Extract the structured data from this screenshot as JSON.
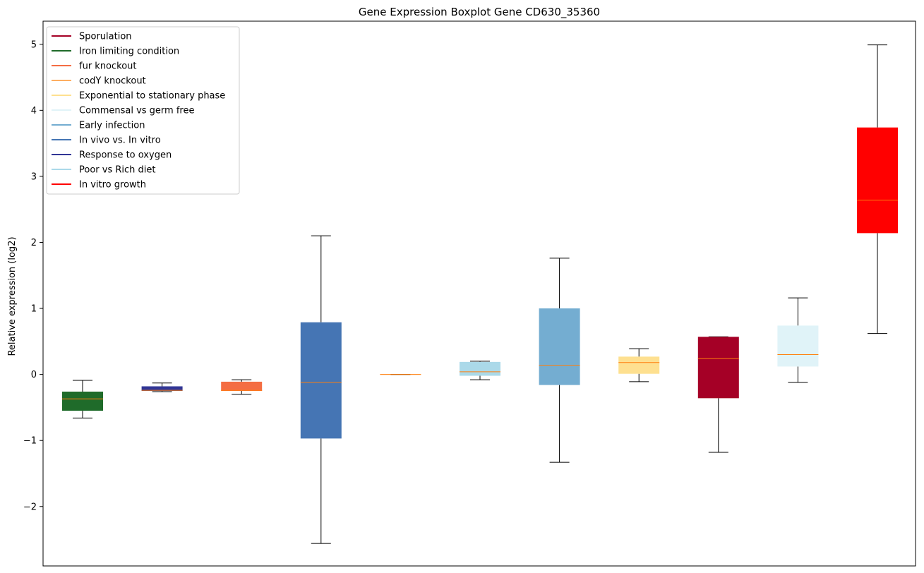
{
  "chart_data": {
    "type": "boxplot",
    "title": "Gene Expression Boxplot Gene CD630_35360",
    "xlabel": "",
    "ylabel": "Relative expression (log2)",
    "ylim": [
      -2.9,
      5.35
    ],
    "yticks": [
      -2,
      -1,
      0,
      1,
      2,
      3,
      4,
      5
    ],
    "ytick_labels": [
      "−2",
      "−1",
      "0",
      "1",
      "2",
      "3",
      "4",
      "5"
    ],
    "grid": false,
    "legend_position": "upper-left",
    "legend": [
      {
        "label": "Sporulation",
        "color": "#a50026"
      },
      {
        "label": "Iron limiting condition",
        "color": "#1f6b2a"
      },
      {
        "label": "fur knockout",
        "color": "#f46d43"
      },
      {
        "label": "codY knockout",
        "color": "#fdae61"
      },
      {
        "label": "Exponential to stationary phase",
        "color": "#fee090"
      },
      {
        "label": "Commensal vs germ free",
        "color": "#e0f3f8"
      },
      {
        "label": "Early infection",
        "color": "#74add1"
      },
      {
        "label": "In vivo vs. In vitro",
        "color": "#4575b4"
      },
      {
        "label": "Response to oxygen",
        "color": "#313695"
      },
      {
        "label": "Poor vs Rich diet",
        "color": "#abd9e9"
      },
      {
        "label": "In vitro growth",
        "color": "#ff0000"
      }
    ],
    "median_color": "#ff7f0e",
    "boxes": [
      {
        "color": "#1f6b2a",
        "whisker_low": -0.66,
        "q1": -0.55,
        "median": -0.37,
        "q3": -0.26,
        "whisker_high": -0.09
      },
      {
        "color": "#313695",
        "whisker_low": -0.26,
        "q1": -0.25,
        "median": -0.24,
        "q3": -0.18,
        "whisker_high": -0.13
      },
      {
        "color": "#f46d43",
        "whisker_low": -0.3,
        "q1": -0.25,
        "median": -0.24,
        "q3": -0.11,
        "whisker_high": -0.08
      },
      {
        "color": "#4575b4",
        "whisker_low": -2.56,
        "q1": -0.97,
        "median": -0.12,
        "q3": 0.79,
        "whisker_high": 2.1
      },
      {
        "color": "#fdae61",
        "whisker_low": 0.0,
        "q1": 0.0,
        "median": 0.0,
        "q3": 0.0,
        "whisker_high": 0.0
      },
      {
        "color": "#abd9e9",
        "whisker_low": -0.08,
        "q1": -0.02,
        "median": 0.04,
        "q3": 0.19,
        "whisker_high": 0.2
      },
      {
        "color": "#74add1",
        "whisker_low": -1.33,
        "q1": -0.16,
        "median": 0.14,
        "q3": 1.0,
        "whisker_high": 1.76
      },
      {
        "color": "#fee090",
        "whisker_low": -0.11,
        "q1": 0.01,
        "median": 0.18,
        "q3": 0.27,
        "whisker_high": 0.39
      },
      {
        "color": "#a50026",
        "whisker_low": -1.18,
        "q1": -0.36,
        "median": 0.24,
        "q3": 0.57,
        "whisker_high": 0.57
      },
      {
        "color": "#e0f3f8",
        "whisker_low": -0.12,
        "q1": 0.12,
        "median": 0.3,
        "q3": 0.74,
        "whisker_high": 1.16
      },
      {
        "color": "#ff0000",
        "whisker_low": 0.62,
        "q1": 2.14,
        "median": 2.64,
        "q3": 3.74,
        "whisker_high": 4.99
      }
    ]
  }
}
